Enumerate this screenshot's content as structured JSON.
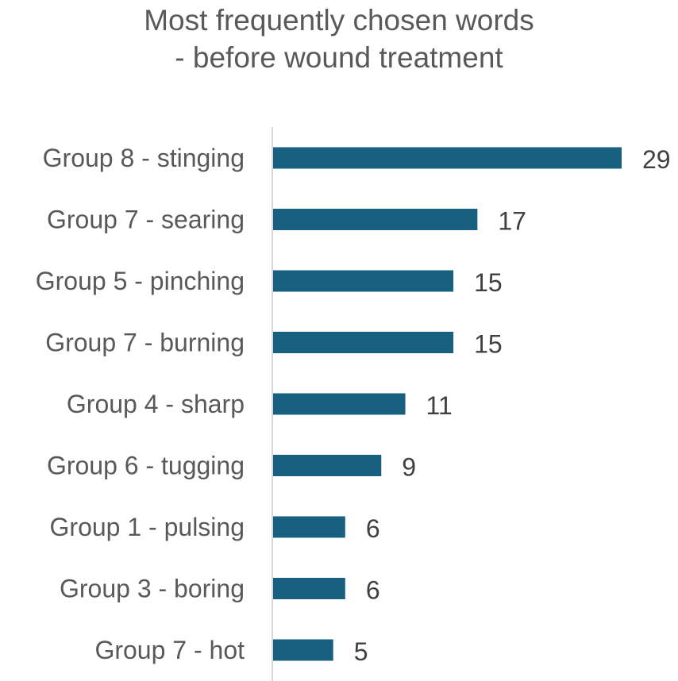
{
  "chart_data": {
    "type": "bar",
    "orientation": "horizontal",
    "title": "Most frequently chosen words",
    "subtitle": "- before wound treatment",
    "categories": [
      "Group 8 - stinging",
      "Group 7 - searing",
      "Group 5 - pinching",
      "Group 7 - burning",
      "Group 4 - sharp",
      "Group 6 - tugging",
      "Group 1 - pulsing",
      "Group 3 - boring",
      "Group 7 - hot"
    ],
    "values": [
      29,
      17,
      15,
      15,
      11,
      9,
      6,
      6,
      5
    ],
    "xlim": [
      0,
      29
    ],
    "grid": false,
    "data_labels": true,
    "legend": "none",
    "bar_color": "#17607f",
    "axis_color": "#d9d9d9"
  }
}
